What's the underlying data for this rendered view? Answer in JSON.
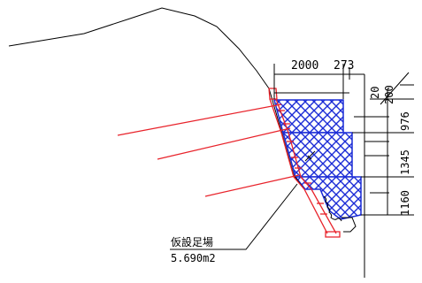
{
  "dimensions": {
    "top_width_a": "2000",
    "top_width_b": "273",
    "top_offset": "200",
    "heights": [
      "976",
      "1345",
      "1160"
    ],
    "small_offset": "20"
  },
  "annotation": {
    "label": "仮設足場",
    "area": "5.690m2"
  },
  "colors": {
    "outline": "#000000",
    "anchor": "#e8222a",
    "fill": "#1a2bd6"
  }
}
